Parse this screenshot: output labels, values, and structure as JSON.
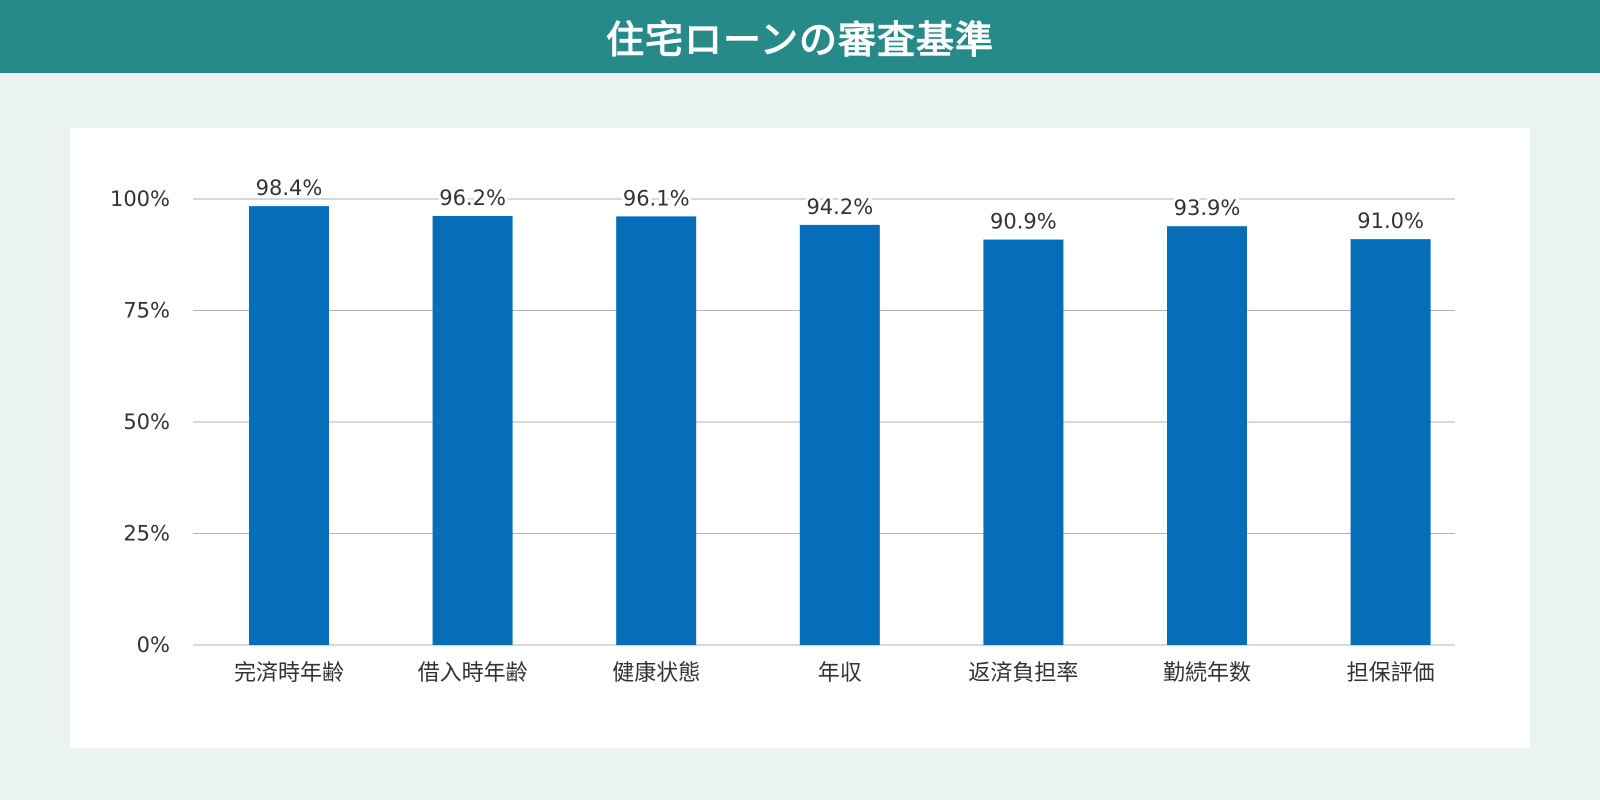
{
  "header": {
    "title": "住宅ローンの審査基準"
  },
  "colors": {
    "header_bg": "#258a88",
    "page_bg": "#eaf3f2",
    "bar": "#066db8",
    "grid": "#b3b3b3"
  },
  "chart_data": {
    "type": "bar",
    "title": "",
    "xlabel": "",
    "ylabel": "",
    "categories": [
      "完済時年齢",
      "借入時年齢",
      "健康状態",
      "年収",
      "返済負担率",
      "勤続年数",
      "担保評価"
    ],
    "series": [
      {
        "values": [
          98.4,
          96.2,
          96.1,
          94.2,
          90.9,
          93.9,
          91.0
        ],
        "value_labels": [
          "98.4%",
          "96.2%",
          "96.1%",
          "94.2%",
          "90.9%",
          "93.9%",
          "91.0%"
        ]
      }
    ],
    "ylim": [
      0,
      100
    ],
    "yticks": [
      0,
      25,
      50,
      75,
      100
    ],
    "ytick_labels": [
      "0%",
      "25%",
      "50%",
      "75%",
      "100%"
    ],
    "grid": true,
    "legend": "none"
  }
}
